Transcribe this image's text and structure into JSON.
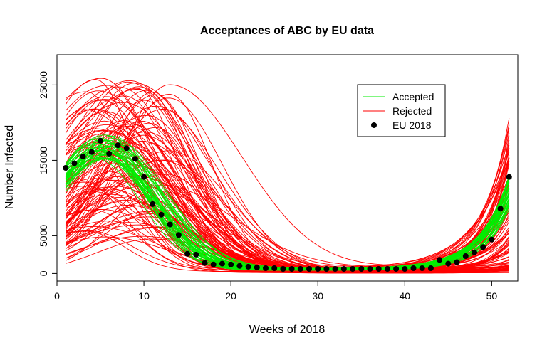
{
  "chart_data": {
    "type": "line",
    "title": "Acceptances of ABC by EU data",
    "xlabel": "Weeks of 2018",
    "ylabel": "Number Infected",
    "xlim": [
      0,
      53
    ],
    "ylim": [
      -1000,
      29000
    ],
    "x_ticks": [
      0,
      10,
      20,
      30,
      40,
      50
    ],
    "y_ticks": [
      0,
      5000,
      15000,
      25000
    ],
    "legend_position": "top-right",
    "legend": [
      {
        "label": "Accepted",
        "kind": "line",
        "color": "#00ee00"
      },
      {
        "label": "Rejected",
        "kind": "line",
        "color": "#ff0000"
      },
      {
        "label": "EU 2018",
        "kind": "point",
        "color": "#000000"
      }
    ],
    "colors": {
      "accepted": "#00ee00",
      "rejected": "#ff0000",
      "observed": "#000000"
    },
    "observed_series": {
      "x": [
        1,
        2,
        3,
        4,
        5,
        6,
        7,
        8,
        9,
        10,
        11,
        12,
        13,
        14,
        15,
        16,
        17,
        18,
        19,
        20,
        21,
        22,
        23,
        24,
        25,
        26,
        27,
        28,
        29,
        30,
        31,
        32,
        33,
        34,
        35,
        36,
        37,
        38,
        39,
        40,
        41,
        42,
        43,
        44,
        45,
        46,
        47,
        48,
        49,
        50,
        51,
        52
      ],
      "y": [
        14000,
        14600,
        15500,
        16100,
        17600,
        15900,
        17000,
        16600,
        15200,
        12800,
        9200,
        7800,
        6500,
        5100,
        2600,
        2500,
        1400,
        1200,
        1300,
        1200,
        1000,
        900,
        800,
        700,
        700,
        600,
        600,
        600,
        600,
        600,
        600,
        600,
        600,
        600,
        600,
        600,
        600,
        600,
        600,
        600,
        700,
        700,
        700,
        1800,
        1300,
        1500,
        2300,
        2800,
        3500,
        4500,
        8600,
        12800
      ]
    },
    "accepted_band": {
      "count": 40,
      "peak_week_range": [
        4.5,
        6.5
      ],
      "peak_value_range": [
        14500,
        17800
      ]
    },
    "rejected_band": {
      "count": 110,
      "peak_week_range": [
        3,
        13
      ],
      "peak_value_range": [
        4000,
        25500
      ]
    }
  }
}
